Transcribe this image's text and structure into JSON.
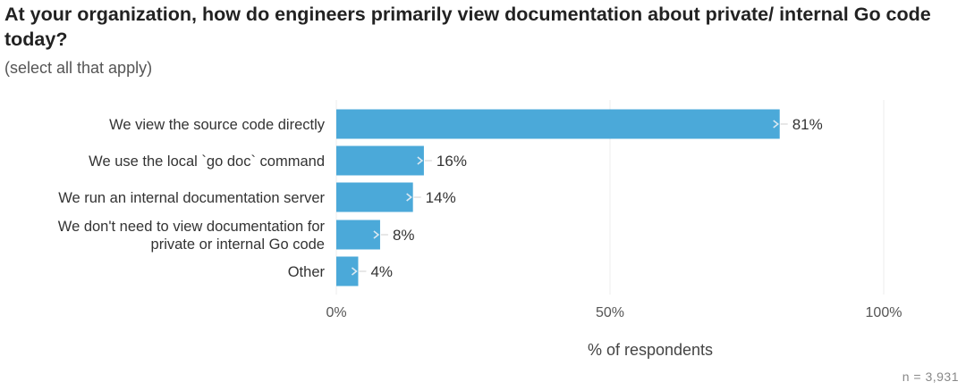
{
  "chart_data": {
    "type": "bar",
    "orientation": "horizontal",
    "title": "At your organization, how do engineers primarily view documentation about private/ internal Go code today?",
    "subtitle": "(select all that apply)",
    "categories": [
      "We view the source code directly",
      "We use the local `go doc` command",
      "We run an internal documentation server",
      "We don't need to view documentation for private or internal Go code",
      "Other"
    ],
    "category_lines": [
      [
        "We view the source code directly"
      ],
      [
        "We use the local `go doc` command"
      ],
      [
        "We run an internal documentation server"
      ],
      [
        "We don't need to view documentation for",
        "private or internal Go code"
      ],
      [
        "Other"
      ]
    ],
    "values": [
      81,
      16,
      14,
      8,
      4
    ],
    "value_labels": [
      "81%",
      "16%",
      "14%",
      "8%",
      "4%"
    ],
    "xlabel": "% of respondents",
    "xlim": [
      0,
      100
    ],
    "x_ticks": [
      0,
      50,
      100
    ],
    "x_tick_labels": [
      "0%",
      "50%",
      "100%"
    ],
    "grid": true,
    "bar_color": "#4ba9d9",
    "note": "n =  3,931"
  }
}
